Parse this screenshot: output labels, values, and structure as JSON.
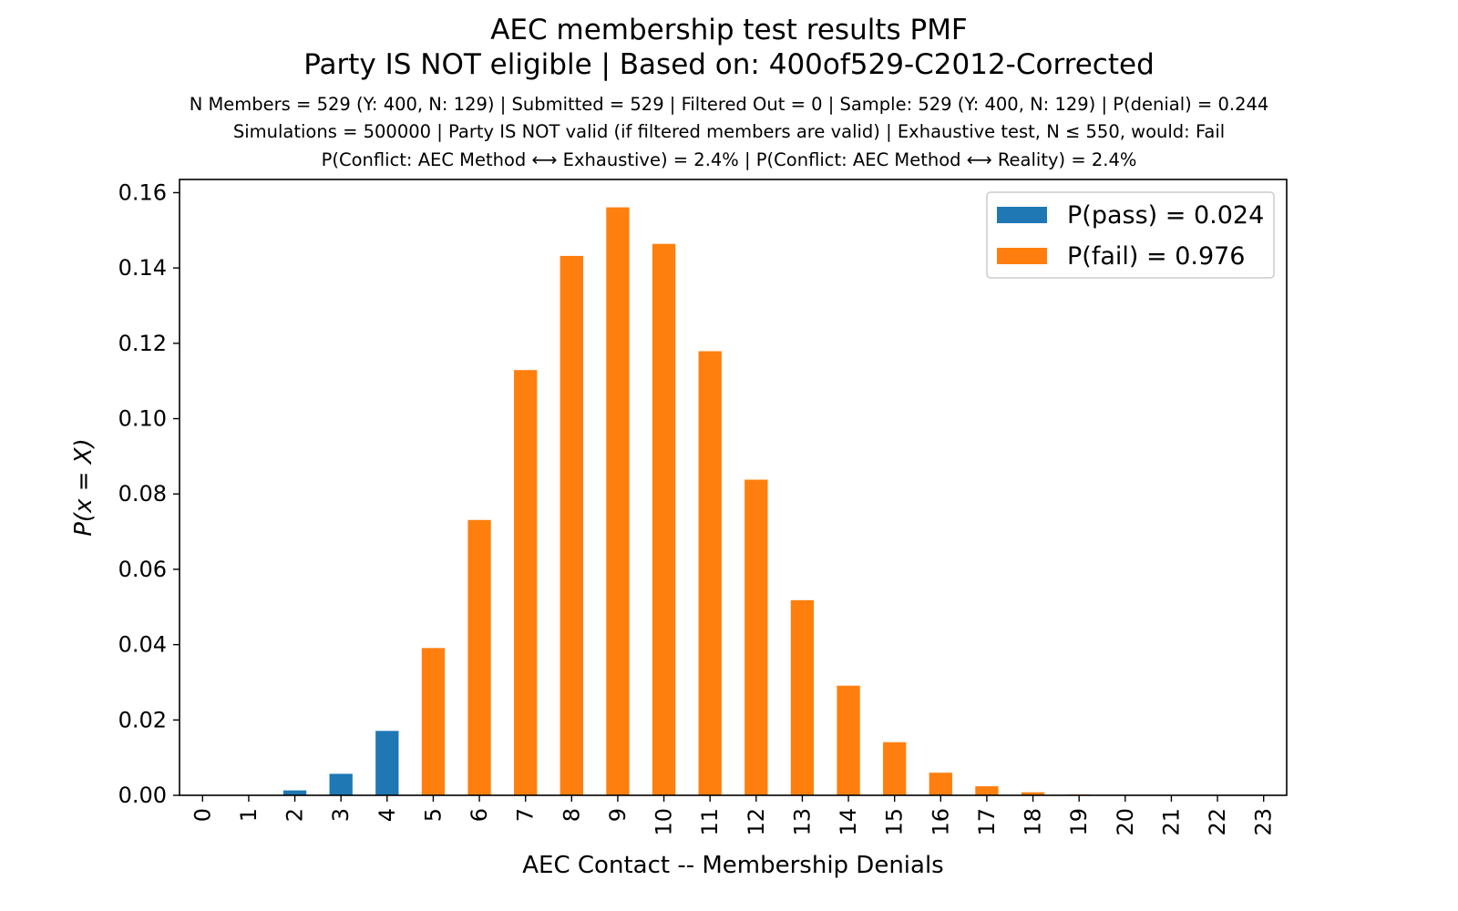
{
  "chart_data": {
    "type": "bar",
    "title": "AEC membership test results PMF",
    "subtitle": "Party IS NOT eligible | Based on: 400of529-C2012-Corrected",
    "info_lines": [
      "N Members = 529 (Y: 400, N: 129) | Submitted = 529 | Filtered Out = 0 | Sample: 529 (Y: 400, N: 129) | P(denial) = 0.244",
      "Simulations = 500000 | Party IS NOT valid (if filtered members are valid) | Exhaustive test, N ≤ 550, would: Fail",
      "P(Conflict: AEC Method ⟷ Exhaustive) = 2.4% | P(Conflict: AEC Method ⟷ Reality) = 2.4%"
    ],
    "xlabel": "AEC Contact -- Membership Denials",
    "ylabel": "P(x = X)",
    "categories": [
      "0",
      "1",
      "2",
      "3",
      "4",
      "5",
      "6",
      "7",
      "8",
      "9",
      "10",
      "11",
      "12",
      "13",
      "14",
      "15",
      "16",
      "17",
      "18",
      "19",
      "20",
      "21",
      "22",
      "23"
    ],
    "ylim": [
      0,
      0.1635
    ],
    "yticks": [
      "0.00",
      "0.02",
      "0.04",
      "0.06",
      "0.08",
      "0.10",
      "0.12",
      "0.14",
      "0.16"
    ],
    "series": [
      {
        "name": "P(pass) = 0.024",
        "color": "#1f77b4",
        "values": [
          0.0,
          0.0001,
          0.0013,
          0.0057,
          0.0171,
          0,
          0,
          0,
          0,
          0,
          0,
          0,
          0,
          0,
          0,
          0,
          0,
          0,
          0,
          0,
          0,
          0,
          0,
          0
        ]
      },
      {
        "name": "P(fail) = 0.976",
        "color": "#ff7f0e",
        "values": [
          0,
          0,
          0,
          0,
          0,
          0.0391,
          0.0731,
          0.1129,
          0.1432,
          0.1561,
          0.1464,
          0.1179,
          0.0838,
          0.0518,
          0.0291,
          0.0141,
          0.006,
          0.0024,
          0.0008,
          0.0002,
          0.0001,
          0.0,
          0.0,
          0.0
        ]
      }
    ],
    "legend": {
      "position": "top-right",
      "pass_label": "P(pass) = 0.024",
      "fail_label": "P(fail) = 0.976"
    },
    "grid": false
  }
}
